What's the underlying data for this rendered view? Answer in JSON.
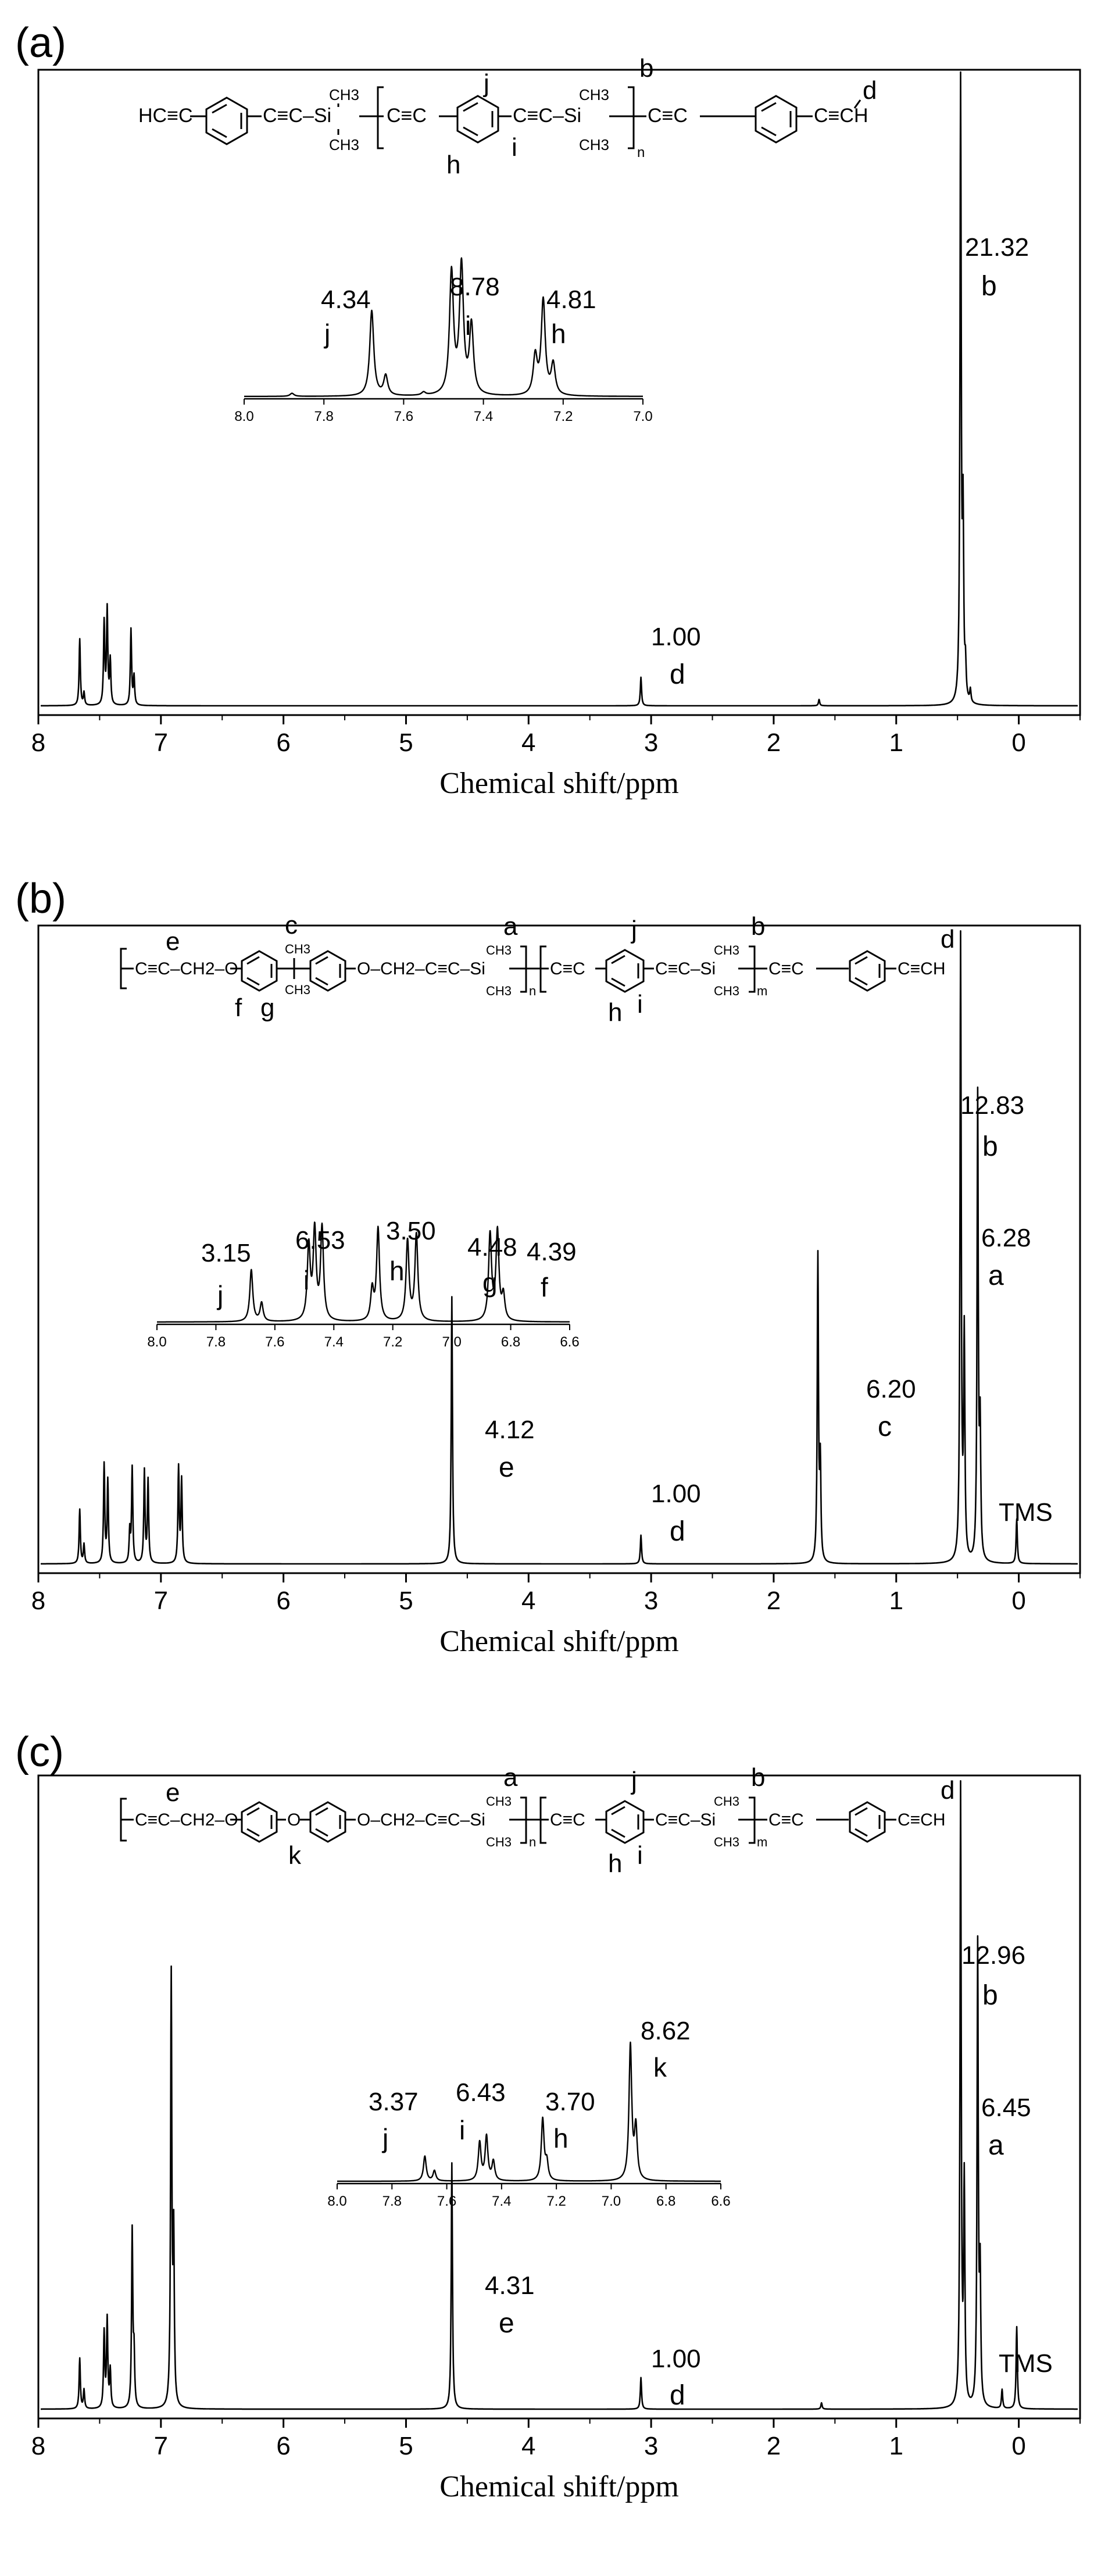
{
  "figure": {
    "panels": [
      {
        "label": "(a)",
        "structure_text": "HC≡C–Ph–C≡C–Si(CH3)2–[–C≡C–Ph(h,i,j)–C≡C–Si(CH3)2(b)–]n–C≡C–Ph–C≡CH(d)",
        "structure_letters": [
          "j",
          "i",
          "h",
          "b",
          "d"
        ],
        "structure_subscripts": [
          "n"
        ]
      },
      {
        "label": "(b)",
        "structure_text": "[–C≡C–CH2(e)–O–Ph(f,g)–C(CH3)2(c)–Ph–O–CH2–C≡C–Si(CH3)2(a)–]n[–C≡C–Ph(h,i,j)–C≡C–Si(CH3)2(b)–]m–C≡C–Ph–C≡CH(d)",
        "structure_letters": [
          "e",
          "c",
          "a",
          "f",
          "g",
          "j",
          "b",
          "h",
          "i",
          "d"
        ],
        "structure_subscripts": [
          "n",
          "m"
        ]
      },
      {
        "label": "(c)",
        "structure_text": "[–C≡C–CH2(e)–O–Ph(k)–O–Ph–O–CH2–C≡C–Si(CH3)2(a)–]n[–C≡C–Ph(h,i,j)–C≡C–Si(CH3)2(b)–]m–C≡C–Ph–C≡CH(d)",
        "structure_letters": [
          "e",
          "a",
          "k",
          "j",
          "b",
          "h",
          "i",
          "d"
        ],
        "structure_subscripts": [
          "n",
          "m"
        ]
      }
    ]
  },
  "chart_data": [
    {
      "type": "line",
      "panel": "(a)",
      "xlabel": "Chemical shift/ppm",
      "xlim": [
        8,
        -0.5
      ],
      "x_reversed": true,
      "xticks": [
        8,
        7,
        6,
        5,
        4,
        3,
        2,
        1,
        0
      ],
      "xtick_labels": [
        "8",
        "7",
        "6",
        "5",
        "4",
        "3",
        "2",
        "1",
        "0"
      ],
      "series": [
        {
          "peaks": [
            {
              "x": 7.68,
              "h": 0.105
            },
            {
              "x": 7.645,
              "h": 0.02
            },
            {
              "x": 7.48,
              "h": 0.13
            },
            {
              "x": 7.455,
              "h": 0.15
            },
            {
              "x": 7.43,
              "h": 0.07
            },
            {
              "x": 7.26,
              "h": 0.12
            },
            {
              "x": 7.235,
              "h": 0.045
            },
            {
              "x": 3.08,
              "h": 0.045
            },
            {
              "x": 1.62,
              "h": 0.01
            },
            {
              "x": 0.46,
              "h": 0.98
            },
            {
              "x": 0.44,
              "h": 0.28
            },
            {
              "x": 0.42,
              "h": 0.05
            },
            {
              "x": 0.38,
              "h": 0.02
            }
          ]
        }
      ],
      "annotations": [
        {
          "value": "21.32",
          "assignment": "b",
          "x": 0.1
        },
        {
          "value": "1.00",
          "assignment": "d",
          "x": 3.05
        }
      ],
      "inset": {
        "xlim": [
          8.0,
          7.0
        ],
        "xticks": [
          8.0,
          7.8,
          7.6,
          7.4,
          7.2,
          7.0
        ],
        "xtick_labels": [
          "8.0",
          "7.8",
          "7.6",
          "7.4",
          "7.2",
          "7.0"
        ],
        "peaks": [
          {
            "x": 7.88,
            "h": 0.02
          },
          {
            "x": 7.68,
            "h": 0.56
          },
          {
            "x": 7.645,
            "h": 0.13
          },
          {
            "x": 7.48,
            "h": 0.8
          },
          {
            "x": 7.455,
            "h": 0.84
          },
          {
            "x": 7.43,
            "h": 0.45
          },
          {
            "x": 7.27,
            "h": 0.25
          },
          {
            "x": 7.25,
            "h": 0.62
          },
          {
            "x": 7.225,
            "h": 0.2
          },
          {
            "x": 7.55,
            "h": 0.02
          }
        ],
        "annotations": [
          {
            "value": "4.34",
            "assignment": "j"
          },
          {
            "value": "8.78",
            "assignment": "i"
          },
          {
            "value": "4.81",
            "assignment": "h"
          }
        ]
      }
    },
    {
      "type": "line",
      "panel": "(b)",
      "xlabel": "Chemical shift/ppm",
      "xlim": [
        8,
        -0.5
      ],
      "x_reversed": true,
      "xticks": [
        8,
        7,
        6,
        5,
        4,
        3,
        2,
        1,
        0
      ],
      "xtick_labels": [
        "8",
        "7",
        "6",
        "5",
        "4",
        "3",
        "2",
        "1",
        "0"
      ],
      "series": [
        {
          "peaks": [
            {
              "x": 7.68,
              "h": 0.085
            },
            {
              "x": 7.645,
              "h": 0.03
            },
            {
              "x": 7.48,
              "h": 0.155
            },
            {
              "x": 7.45,
              "h": 0.13
            },
            {
              "x": 7.27,
              "h": 0.05
            },
            {
              "x": 7.25,
              "h": 0.15
            },
            {
              "x": 7.15,
              "h": 0.145
            },
            {
              "x": 7.12,
              "h": 0.13
            },
            {
              "x": 6.87,
              "h": 0.15
            },
            {
              "x": 6.845,
              "h": 0.13
            },
            {
              "x": 4.63,
              "h": 0.42
            },
            {
              "x": 3.08,
              "h": 0.045
            },
            {
              "x": 1.63,
              "h": 0.48
            },
            {
              "x": 1.61,
              "h": 0.15
            },
            {
              "x": 0.46,
              "h": 0.98
            },
            {
              "x": 0.43,
              "h": 0.35
            },
            {
              "x": 0.32,
              "h": 0.73
            },
            {
              "x": 0.3,
              "h": 0.2
            },
            {
              "x": 0.0,
              "h": 0.07
            }
          ]
        }
      ],
      "annotations": [
        {
          "value": "12.83",
          "assignment": "b"
        },
        {
          "value": "6.28",
          "assignment": "a"
        },
        {
          "value": "6.20",
          "assignment": "c"
        },
        {
          "value": "4.12",
          "assignment": "e"
        },
        {
          "value": "1.00",
          "assignment": "d"
        },
        {
          "value": "TMS",
          "assignment": ""
        }
      ],
      "inset": {
        "xlim": [
          8.0,
          6.6
        ],
        "xticks": [
          8.0,
          7.8,
          7.6,
          7.4,
          7.2,
          7.0,
          6.8,
          6.6
        ],
        "xtick_labels": [
          "8.0",
          "7.8",
          "7.6",
          "7.4",
          "7.2",
          "7.0",
          "6.8",
          "6.6"
        ],
        "peaks": [
          {
            "x": 7.68,
            "h": 0.42
          },
          {
            "x": 7.645,
            "h": 0.15
          },
          {
            "x": 7.485,
            "h": 0.6
          },
          {
            "x": 7.465,
            "h": 0.72
          },
          {
            "x": 7.44,
            "h": 0.75
          },
          {
            "x": 7.27,
            "h": 0.25
          },
          {
            "x": 7.25,
            "h": 0.75
          },
          {
            "x": 7.15,
            "h": 0.65
          },
          {
            "x": 7.12,
            "h": 0.7
          },
          {
            "x": 6.87,
            "h": 0.7
          },
          {
            "x": 6.845,
            "h": 0.72
          },
          {
            "x": 6.825,
            "h": 0.2
          }
        ],
        "annotations": [
          {
            "value": "3.15",
            "assignment": "j"
          },
          {
            "value": "6.53",
            "assignment": "i"
          },
          {
            "value": "3.50",
            "assignment": "h"
          },
          {
            "value": "4.48",
            "assignment": "g"
          },
          {
            "value": "4.39",
            "assignment": "f"
          }
        ]
      }
    },
    {
      "type": "line",
      "panel": "(c)",
      "xlabel": "Chemical shift/ppm",
      "xlim": [
        8,
        -0.5
      ],
      "x_reversed": true,
      "xticks": [
        8,
        7,
        6,
        5,
        4,
        3,
        2,
        1,
        0
      ],
      "xtick_labels": [
        "8",
        "7",
        "6",
        "5",
        "4",
        "3",
        "2",
        "1",
        "0"
      ],
      "series": [
        {
          "peaks": [
            {
              "x": 7.68,
              "h": 0.08
            },
            {
              "x": 7.645,
              "h": 0.03
            },
            {
              "x": 7.48,
              "h": 0.12
            },
            {
              "x": 7.455,
              "h": 0.14
            },
            {
              "x": 7.43,
              "h": 0.06
            },
            {
              "x": 7.25,
              "h": 0.28
            },
            {
              "x": 7.235,
              "h": 0.08
            },
            {
              "x": 6.93,
              "h": 0.68
            },
            {
              "x": 6.91,
              "h": 0.26
            },
            {
              "x": 4.63,
              "h": 0.39
            },
            {
              "x": 3.08,
              "h": 0.05
            },
            {
              "x": 1.6,
              "h": 0.01
            },
            {
              "x": 0.46,
              "h": 0.98
            },
            {
              "x": 0.43,
              "h": 0.35
            },
            {
              "x": 0.32,
              "h": 0.73
            },
            {
              "x": 0.3,
              "h": 0.2
            },
            {
              "x": 0.12,
              "h": 0.03
            },
            {
              "x": 0.0,
              "h": 0.13
            }
          ]
        }
      ],
      "annotations": [
        {
          "value": "12.96",
          "assignment": "b"
        },
        {
          "value": "6.45",
          "assignment": "a"
        },
        {
          "value": "4.31",
          "assignment": "e"
        },
        {
          "value": "1.00",
          "assignment": "d"
        },
        {
          "value": "TMS",
          "assignment": ""
        }
      ],
      "inset": {
        "xlim": [
          8.0,
          6.6
        ],
        "xticks": [
          8.0,
          7.8,
          7.6,
          7.4,
          7.2,
          7.0,
          6.8,
          6.6
        ],
        "xtick_labels": [
          "8.0",
          "7.8",
          "7.6",
          "7.4",
          "7.2",
          "7.0",
          "6.8",
          "6.6"
        ],
        "peaks": [
          {
            "x": 7.68,
            "h": 0.17
          },
          {
            "x": 7.645,
            "h": 0.07
          },
          {
            "x": 7.48,
            "h": 0.26
          },
          {
            "x": 7.455,
            "h": 0.3
          },
          {
            "x": 7.43,
            "h": 0.13
          },
          {
            "x": 7.25,
            "h": 0.42
          },
          {
            "x": 7.235,
            "h": 0.12
          },
          {
            "x": 6.93,
            "h": 0.92
          },
          {
            "x": 6.91,
            "h": 0.35
          }
        ],
        "annotations": [
          {
            "value": "3.37",
            "assignment": "j"
          },
          {
            "value": "6.43",
            "assignment": "i"
          },
          {
            "value": "3.70",
            "assignment": "h"
          },
          {
            "value": "8.62",
            "assignment": "k"
          }
        ]
      }
    }
  ]
}
